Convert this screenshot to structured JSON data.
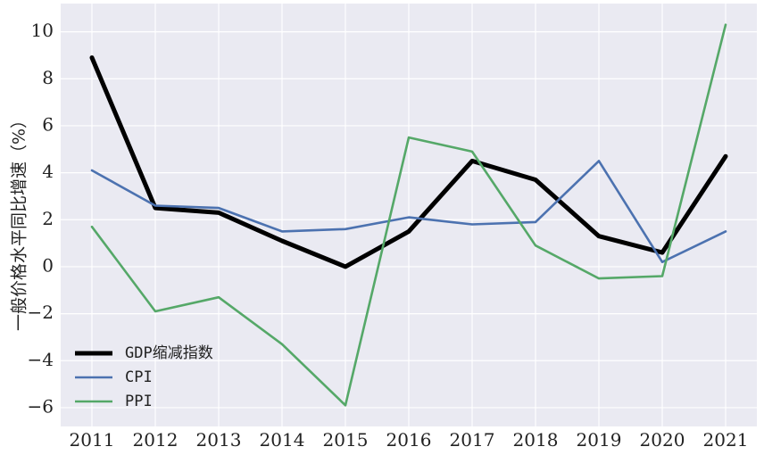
{
  "chart_data": {
    "type": "line",
    "title": "",
    "xlabel": "",
    "ylabel": "一般价格水平同比增速（%）",
    "categories": [
      "2011",
      "2012",
      "2013",
      "2014",
      "2015",
      "2016",
      "2017",
      "2018",
      "2019",
      "2020",
      "2021"
    ],
    "yticks": [
      -6,
      -4,
      -2,
      0,
      2,
      4,
      6,
      8,
      10
    ],
    "ytick_labels": [
      "−6",
      "−4",
      "−2",
      "0",
      "2",
      "4",
      "6",
      "8",
      "10"
    ],
    "ylim": [
      -6.8,
      11.2
    ],
    "grid": true,
    "legend_position": "lower-left",
    "background": "#eaeaf2",
    "series": [
      {
        "name": "GDP缩减指数",
        "color": "#000000",
        "width": 5,
        "values": [
          8.9,
          2.5,
          2.3,
          1.1,
          0.0,
          1.5,
          4.5,
          3.7,
          1.3,
          0.6,
          4.7
        ]
      },
      {
        "name": "CPI",
        "color": "#4c72b0",
        "width": 2.6,
        "values": [
          4.1,
          2.6,
          2.5,
          1.5,
          1.6,
          2.1,
          1.8,
          1.9,
          4.5,
          0.2,
          1.5
        ]
      },
      {
        "name": "PPI",
        "color": "#55a868",
        "width": 2.6,
        "values": [
          1.7,
          -1.9,
          -1.3,
          -3.3,
          -5.9,
          5.5,
          4.9,
          0.9,
          -0.5,
          -0.4,
          10.3
        ]
      }
    ]
  }
}
